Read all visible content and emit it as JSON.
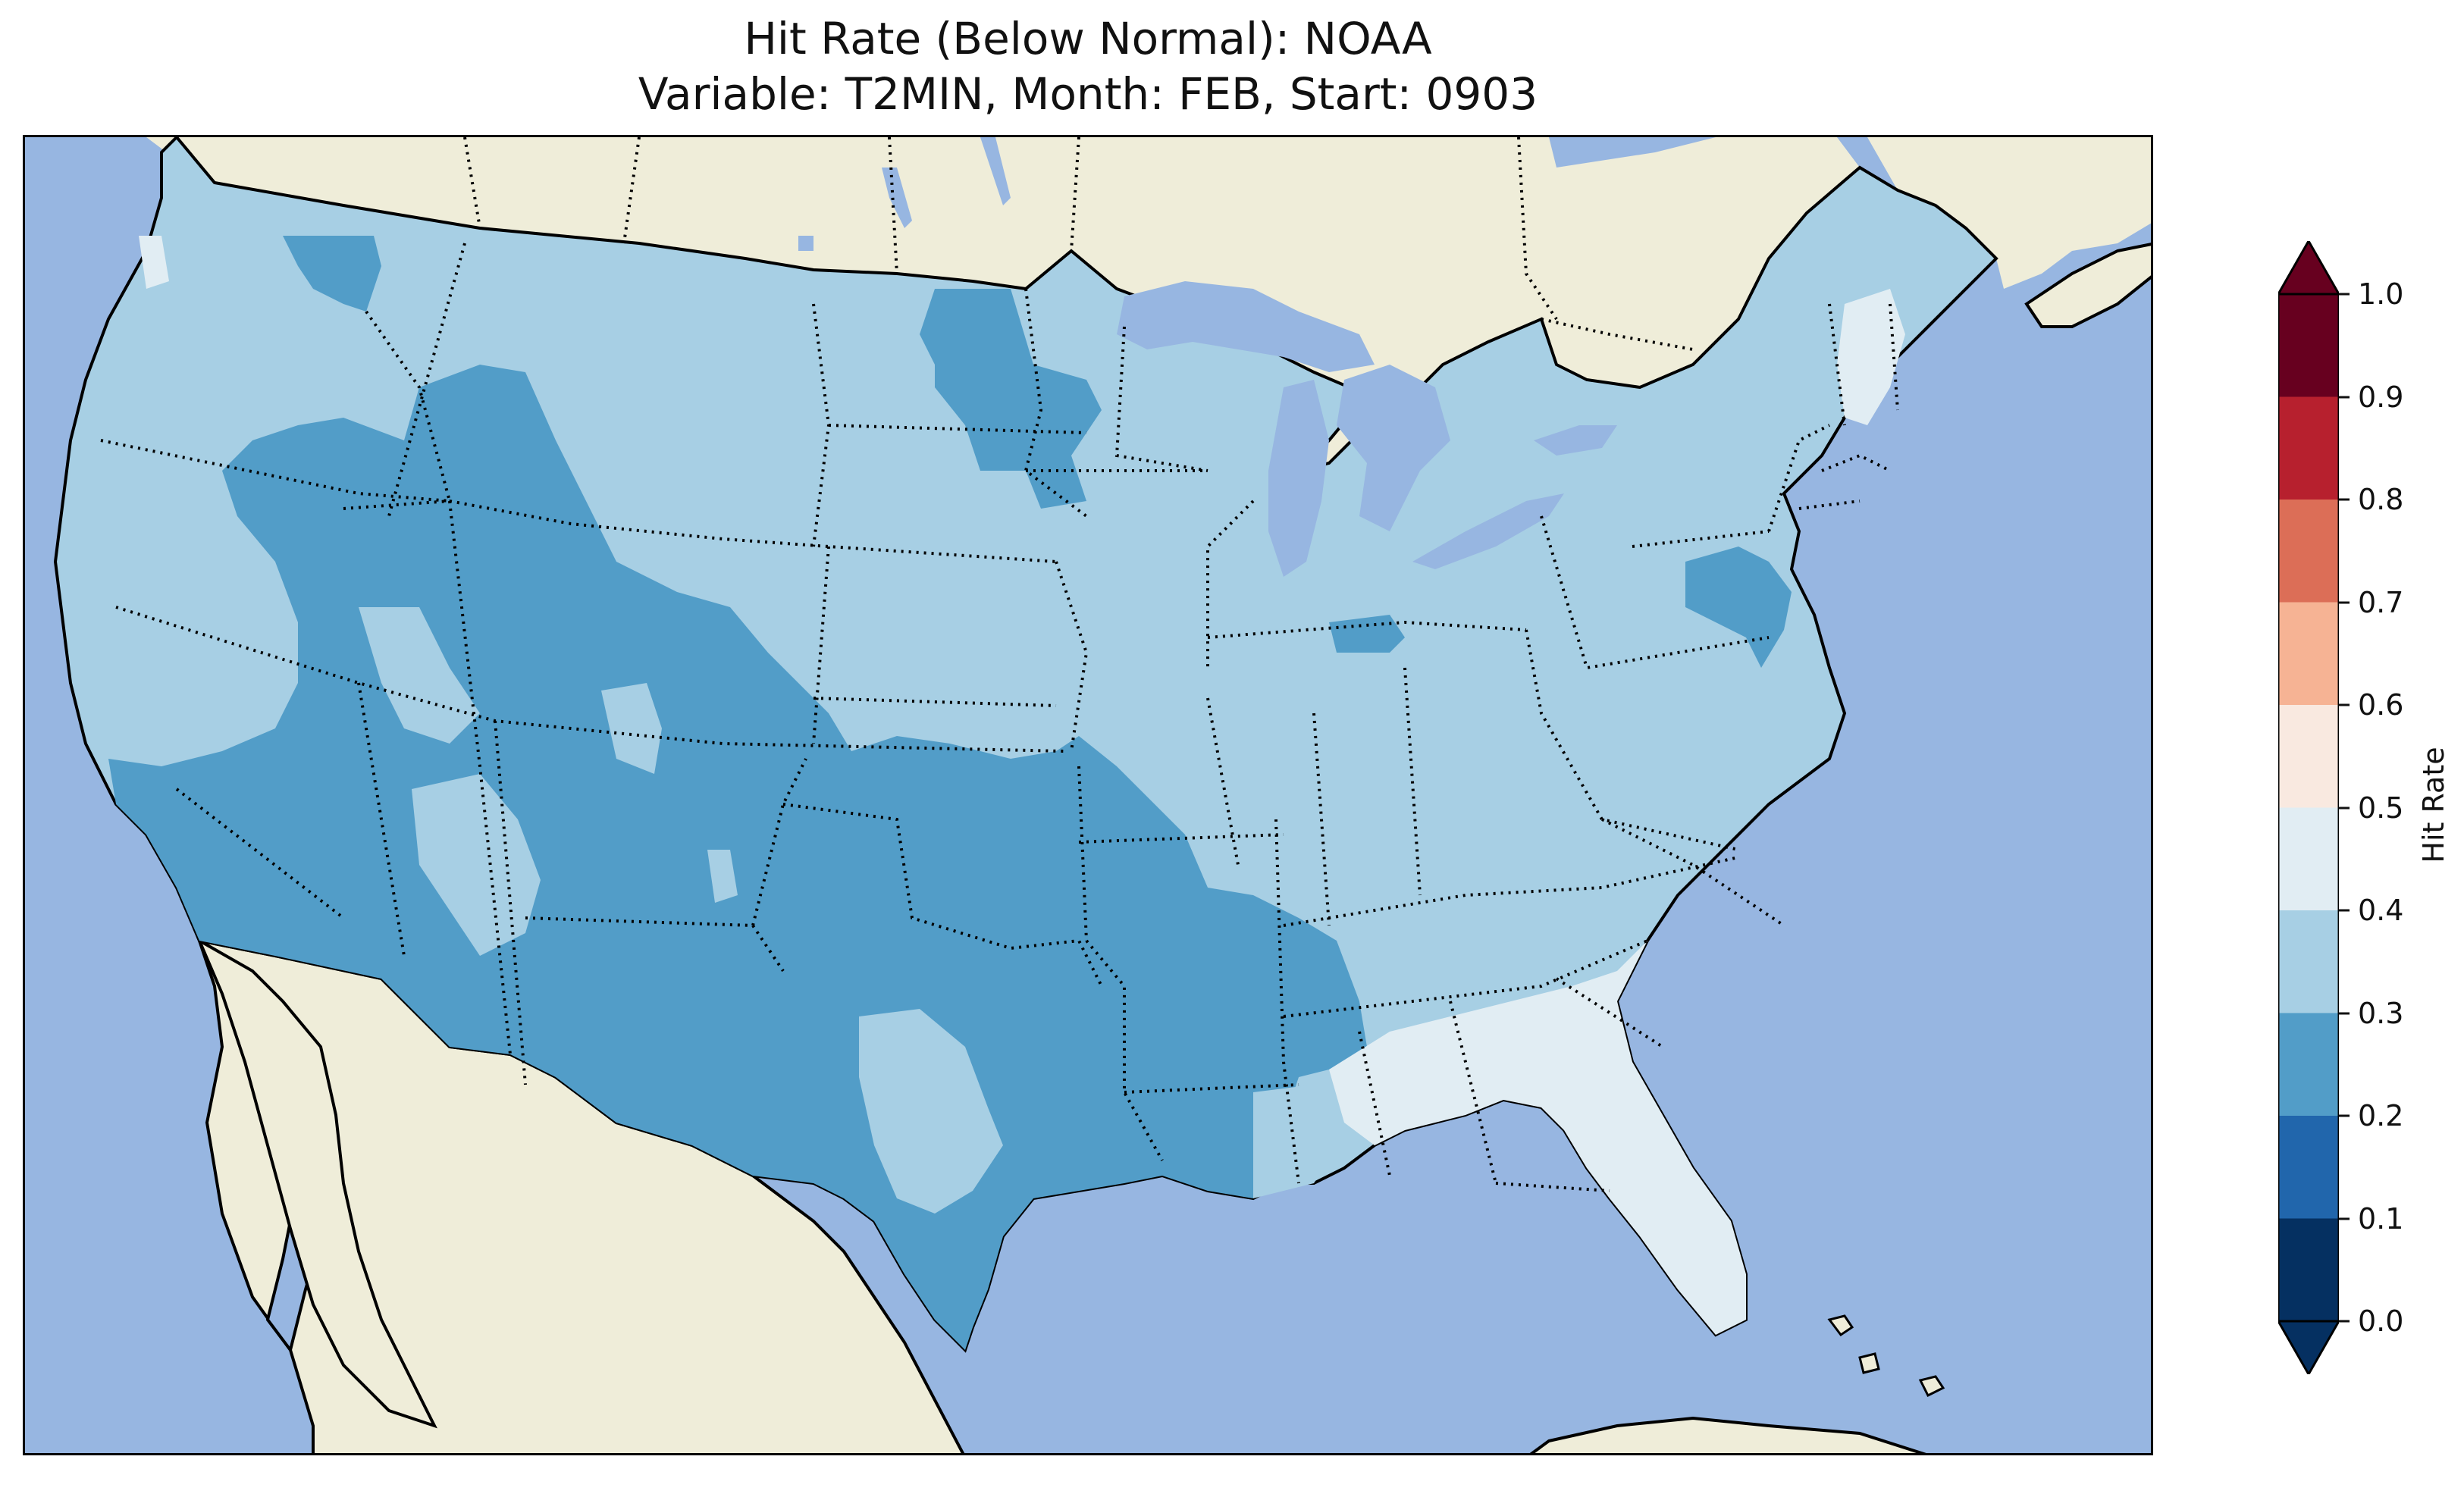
{
  "title": {
    "line1": "Hit Rate (Below Normal): NOAA",
    "line2": "Variable: T2MIN, Month: FEB, Start: 0903"
  },
  "colors": {
    "ocean": "#97b6e1",
    "land": "#efedd9",
    "lake": "#97b6e1",
    "border": "#000000"
  },
  "colorbar": {
    "label": "Hit Rate",
    "ticks": [
      "0.0",
      "0.1",
      "0.2",
      "0.3",
      "0.4",
      "0.5",
      "0.6",
      "0.7",
      "0.8",
      "0.9",
      "1.0"
    ],
    "levels": [
      {
        "from": 0.0,
        "to": 0.1,
        "color": "#053061"
      },
      {
        "from": 0.1,
        "to": 0.2,
        "color": "#2166ac"
      },
      {
        "from": 0.2,
        "to": 0.3,
        "color": "#529dc8"
      },
      {
        "from": 0.3,
        "to": 0.4,
        "color": "#a7cfe4"
      },
      {
        "from": 0.4,
        "to": 0.5,
        "color": "#e1edf3"
      },
      {
        "from": 0.5,
        "to": 0.6,
        "color": "#f9e9e0"
      },
      {
        "from": 0.6,
        "to": 0.7,
        "color": "#f6b394"
      },
      {
        "from": 0.7,
        "to": 0.8,
        "color": "#dc6e57"
      },
      {
        "from": 0.8,
        "to": 0.9,
        "color": "#b7202e"
      },
      {
        "from": 0.9,
        "to": 1.0,
        "color": "#67001f"
      }
    ],
    "extend": "both"
  },
  "map": {
    "region": "Contiguous United States",
    "variable": "T2MIN",
    "regional_values": [
      {
        "region": "most of CONUS (Pacific NW, northern plains, Midwest, Northeast)",
        "hit_rate_band": "0.3-0.4"
      },
      {
        "region": "Southwest, Great Basin, Colorado, New Mexico, Texas, Oklahoma, Kansas, Arkansas, Louisiana, Mississippi",
        "hit_rate_band": "0.2-0.3"
      },
      {
        "region": "Southeast (Georgia, Florida, South Carolina coast)",
        "hit_rate_band": "0.4-0.5"
      },
      {
        "region": "Northern Maine, northwest Washington coast",
        "hit_rate_band": "0.4-0.5"
      },
      {
        "region": "New Jersey / SE Pennsylvania, North Dakota, Idaho patch",
        "hit_rate_band": "0.2-0.3"
      }
    ]
  }
}
